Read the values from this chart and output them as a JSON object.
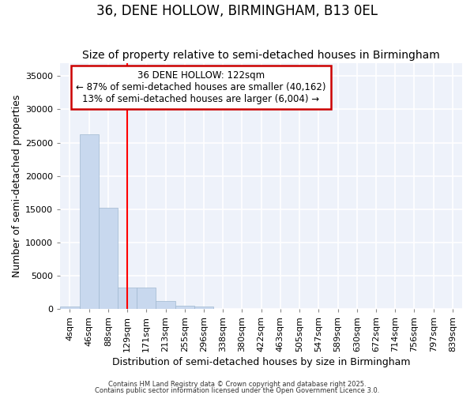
{
  "title": "36, DENE HOLLOW, BIRMINGHAM, B13 0EL",
  "subtitle": "Size of property relative to semi-detached houses in Birmingham",
  "xlabel": "Distribution of semi-detached houses by size in Birmingham",
  "ylabel": "Number of semi-detached properties",
  "bin_labels": [
    "4sqm",
    "46sqm",
    "88sqm",
    "129sqm",
    "171sqm",
    "213sqm",
    "255sqm",
    "296sqm",
    "338sqm",
    "380sqm",
    "422sqm",
    "463sqm",
    "505sqm",
    "547sqm",
    "589sqm",
    "630sqm",
    "672sqm",
    "714sqm",
    "756sqm",
    "797sqm",
    "839sqm"
  ],
  "bar_values": [
    400,
    26200,
    15200,
    3200,
    3200,
    1200,
    500,
    400,
    0,
    0,
    0,
    0,
    0,
    0,
    0,
    0,
    0,
    0,
    0,
    0,
    0
  ],
  "bar_color": "#c8d8ee",
  "bar_edge_color": "#a0b8d0",
  "red_line_x": 3.0,
  "annotation_title": "36 DENE HOLLOW: 122sqm",
  "annotation_line1": "← 87% of semi-detached houses are smaller (40,162)",
  "annotation_line2": "13% of semi-detached houses are larger (6,004) →",
  "annotation_box_color": "#ffffff",
  "annotation_border_color": "#cc0000",
  "ylim": [
    0,
    37000
  ],
  "yticks": [
    0,
    5000,
    10000,
    15000,
    20000,
    25000,
    30000,
    35000
  ],
  "footer1": "Contains HM Land Registry data © Crown copyright and database right 2025.",
  "footer2": "Contains public sector information licensed under the Open Government Licence 3.0.",
  "background_color": "#ffffff",
  "plot_bg_color": "#eef2fa",
  "grid_color": "#ffffff",
  "title_fontsize": 12,
  "subtitle_fontsize": 10,
  "tick_fontsize": 8,
  "ylabel_fontsize": 9,
  "xlabel_fontsize": 9,
  "annotation_fontsize": 8.5
}
